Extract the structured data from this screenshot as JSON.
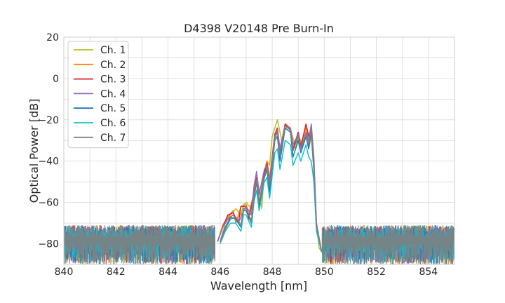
{
  "chart_data": {
    "type": "line",
    "title": "D4398 V20148 Pre Burn-In",
    "xlabel": "Wavelength [nm]",
    "ylabel": "Optical Power [dB]",
    "xlim": [
      840,
      855
    ],
    "ylim": [
      -90,
      20
    ],
    "xticks": [
      840,
      842,
      844,
      846,
      848,
      850,
      852,
      854
    ],
    "yticks": [
      -80,
      -60,
      -40,
      -20,
      0,
      20
    ],
    "xtick_labels": [
      "840",
      "842",
      "844",
      "846",
      "848",
      "850",
      "852",
      "854"
    ],
    "ytick_labels": [
      "−80",
      "−60",
      "−40",
      "−20",
      "0",
      "20"
    ],
    "grid": true,
    "legend_position": "top-left",
    "noise_floor": {
      "min": -90,
      "max": -71,
      "typical": -80
    },
    "series": [
      {
        "name": "Ch. 1",
        "color": "#bcbd22",
        "points": [
          [
            846.0,
            -79
          ],
          [
            846.2,
            -70
          ],
          [
            846.4,
            -66
          ],
          [
            846.6,
            -63
          ],
          [
            846.8,
            -66
          ],
          [
            846.9,
            -61
          ],
          [
            847.0,
            -60
          ],
          [
            847.2,
            -63
          ],
          [
            847.3,
            -58
          ],
          [
            847.4,
            -46
          ],
          [
            847.5,
            -54
          ],
          [
            847.6,
            -63
          ],
          [
            847.7,
            -45
          ],
          [
            847.8,
            -40
          ],
          [
            847.9,
            -42
          ],
          [
            848.0,
            -28
          ],
          [
            848.2,
            -20
          ],
          [
            848.4,
            -32
          ],
          [
            848.5,
            -22
          ],
          [
            848.7,
            -24
          ],
          [
            848.9,
            -34
          ],
          [
            849.0,
            -28
          ],
          [
            849.2,
            -32
          ],
          [
            849.3,
            -26
          ],
          [
            849.4,
            -34
          ],
          [
            849.5,
            -28
          ],
          [
            849.6,
            -45
          ],
          [
            849.7,
            -70
          ],
          [
            849.8,
            -82
          ],
          [
            849.9,
            -84
          ]
        ]
      },
      {
        "name": "Ch. 2",
        "color": "#ff7f0e",
        "points": [
          [
            845.9,
            -79
          ],
          [
            846.1,
            -71
          ],
          [
            846.3,
            -67
          ],
          [
            846.5,
            -64
          ],
          [
            846.6,
            -70
          ],
          [
            846.8,
            -62
          ],
          [
            847.0,
            -61
          ],
          [
            847.1,
            -66
          ],
          [
            847.3,
            -55
          ],
          [
            847.4,
            -48
          ],
          [
            847.5,
            -60
          ],
          [
            847.7,
            -45
          ],
          [
            847.8,
            -40
          ],
          [
            847.9,
            -48
          ],
          [
            848.1,
            -27
          ],
          [
            848.2,
            -24
          ],
          [
            848.3,
            -34
          ],
          [
            848.5,
            -22
          ],
          [
            848.7,
            -24
          ],
          [
            848.8,
            -34
          ],
          [
            849.0,
            -26
          ],
          [
            849.1,
            -32
          ],
          [
            849.3,
            -24
          ],
          [
            849.4,
            -30
          ],
          [
            849.5,
            -24
          ],
          [
            849.6,
            -40
          ],
          [
            849.7,
            -70
          ],
          [
            849.9,
            -84
          ]
        ]
      },
      {
        "name": "Ch. 3",
        "color": "#d62728",
        "points": [
          [
            845.9,
            -79
          ],
          [
            846.1,
            -72
          ],
          [
            846.3,
            -66
          ],
          [
            846.5,
            -65
          ],
          [
            846.7,
            -70
          ],
          [
            846.8,
            -62
          ],
          [
            847.0,
            -62
          ],
          [
            847.1,
            -68
          ],
          [
            847.3,
            -56
          ],
          [
            847.4,
            -48
          ],
          [
            847.5,
            -62
          ],
          [
            847.7,
            -46
          ],
          [
            847.8,
            -41
          ],
          [
            847.9,
            -50
          ],
          [
            848.1,
            -27
          ],
          [
            848.2,
            -24
          ],
          [
            848.3,
            -36
          ],
          [
            848.5,
            -22
          ],
          [
            848.7,
            -25
          ],
          [
            848.8,
            -34
          ],
          [
            849.0,
            -26
          ],
          [
            849.1,
            -33
          ],
          [
            849.3,
            -22
          ],
          [
            849.4,
            -28
          ],
          [
            849.5,
            -24
          ],
          [
            849.6,
            -42
          ],
          [
            849.7,
            -72
          ],
          [
            849.9,
            -84
          ]
        ]
      },
      {
        "name": "Ch. 4",
        "color": "#9467bd",
        "points": [
          [
            845.9,
            -79
          ],
          [
            846.1,
            -72
          ],
          [
            846.3,
            -68
          ],
          [
            846.5,
            -66
          ],
          [
            846.7,
            -70
          ],
          [
            846.9,
            -64
          ],
          [
            847.0,
            -62
          ],
          [
            847.2,
            -66
          ],
          [
            847.3,
            -52
          ],
          [
            847.4,
            -45
          ],
          [
            847.5,
            -56
          ],
          [
            847.7,
            -44
          ],
          [
            847.8,
            -42
          ],
          [
            847.9,
            -50
          ],
          [
            848.1,
            -28
          ],
          [
            848.2,
            -25
          ],
          [
            848.3,
            -34
          ],
          [
            848.5,
            -23
          ],
          [
            848.7,
            -24
          ],
          [
            848.8,
            -32
          ],
          [
            849.0,
            -27
          ],
          [
            849.1,
            -34
          ],
          [
            849.3,
            -26
          ],
          [
            849.4,
            -30
          ],
          [
            849.5,
            -22
          ],
          [
            849.6,
            -38
          ],
          [
            849.7,
            -70
          ],
          [
            849.9,
            -84
          ]
        ]
      },
      {
        "name": "Ch. 5",
        "color": "#1f77b4",
        "points": [
          [
            846.0,
            -79
          ],
          [
            846.2,
            -72
          ],
          [
            846.4,
            -67
          ],
          [
            846.6,
            -68
          ],
          [
            846.8,
            -72
          ],
          [
            846.9,
            -64
          ],
          [
            847.0,
            -64
          ],
          [
            847.2,
            -70
          ],
          [
            847.3,
            -58
          ],
          [
            847.4,
            -50
          ],
          [
            847.5,
            -62
          ],
          [
            847.7,
            -48
          ],
          [
            847.8,
            -44
          ],
          [
            847.9,
            -55
          ],
          [
            848.1,
            -30
          ],
          [
            848.2,
            -28
          ],
          [
            848.3,
            -40
          ],
          [
            848.5,
            -24
          ],
          [
            848.7,
            -26
          ],
          [
            848.8,
            -38
          ],
          [
            849.0,
            -30
          ],
          [
            849.1,
            -36
          ],
          [
            849.3,
            -28
          ],
          [
            849.4,
            -34
          ],
          [
            849.5,
            -26
          ],
          [
            849.6,
            -44
          ],
          [
            849.7,
            -72
          ],
          [
            849.9,
            -84
          ]
        ]
      },
      {
        "name": "Ch. 6",
        "color": "#17becf",
        "points": [
          [
            846.0,
            -80
          ],
          [
            846.2,
            -74
          ],
          [
            846.4,
            -70
          ],
          [
            846.6,
            -70
          ],
          [
            846.8,
            -74
          ],
          [
            846.9,
            -66
          ],
          [
            847.0,
            -66
          ],
          [
            847.2,
            -72
          ],
          [
            847.3,
            -60
          ],
          [
            847.4,
            -54
          ],
          [
            847.5,
            -64
          ],
          [
            847.7,
            -50
          ],
          [
            847.8,
            -48
          ],
          [
            847.9,
            -58
          ],
          [
            848.1,
            -36
          ],
          [
            848.2,
            -34
          ],
          [
            848.3,
            -44
          ],
          [
            848.5,
            -30
          ],
          [
            848.7,
            -32
          ],
          [
            848.8,
            -42
          ],
          [
            849.0,
            -36
          ],
          [
            849.1,
            -40
          ],
          [
            849.3,
            -32
          ],
          [
            849.4,
            -38
          ],
          [
            849.5,
            -40
          ],
          [
            849.6,
            -50
          ],
          [
            849.7,
            -74
          ],
          [
            849.9,
            -84
          ]
        ]
      },
      {
        "name": "Ch. 7",
        "color": "#7f7f7f",
        "points": [
          [
            846.0,
            -79
          ],
          [
            846.2,
            -73
          ],
          [
            846.4,
            -68
          ],
          [
            846.6,
            -67
          ],
          [
            846.8,
            -71
          ],
          [
            846.9,
            -63
          ],
          [
            847.0,
            -63
          ],
          [
            847.2,
            -69
          ],
          [
            847.3,
            -57
          ],
          [
            847.4,
            -49
          ],
          [
            847.5,
            -60
          ],
          [
            847.7,
            -47
          ],
          [
            847.8,
            -43
          ],
          [
            847.9,
            -52
          ],
          [
            848.1,
            -29
          ],
          [
            848.2,
            -26
          ],
          [
            848.3,
            -37
          ],
          [
            848.5,
            -23
          ],
          [
            848.7,
            -25
          ],
          [
            848.8,
            -35
          ],
          [
            849.0,
            -28
          ],
          [
            849.1,
            -34
          ],
          [
            849.3,
            -27
          ],
          [
            849.4,
            -32
          ],
          [
            849.5,
            -25
          ],
          [
            849.6,
            -42
          ],
          [
            849.7,
            -71
          ],
          [
            849.9,
            -84
          ]
        ]
      }
    ]
  }
}
